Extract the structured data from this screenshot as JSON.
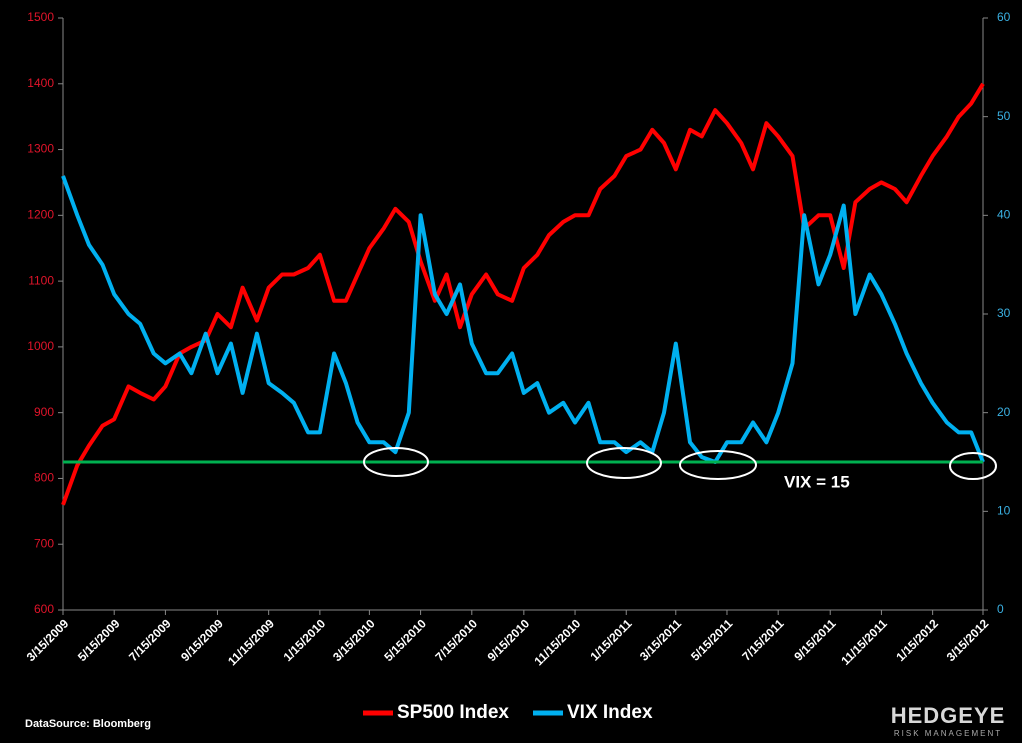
{
  "chart_data": {
    "type": "line",
    "x": [
      "3/15/2009",
      "4/1/2009",
      "4/15/2009",
      "5/1/2009",
      "5/15/2009",
      "6/1/2009",
      "6/15/2009",
      "7/1/2009",
      "7/15/2009",
      "8/1/2009",
      "8/15/2009",
      "9/1/2009",
      "9/15/2009",
      "10/1/2009",
      "10/15/2009",
      "11/1/2009",
      "11/15/2009",
      "12/1/2009",
      "12/15/2009",
      "1/1/2010",
      "1/15/2010",
      "2/1/2010",
      "2/15/2010",
      "3/1/2010",
      "3/15/2010",
      "4/1/2010",
      "4/15/2010",
      "5/1/2010",
      "5/15/2010",
      "6/1/2010",
      "6/15/2010",
      "7/1/2010",
      "7/15/2010",
      "8/1/2010",
      "8/15/2010",
      "9/1/2010",
      "9/15/2010",
      "10/1/2010",
      "10/15/2010",
      "11/1/2010",
      "11/15/2010",
      "12/1/2010",
      "12/15/2010",
      "1/1/2011",
      "1/15/2011",
      "2/1/2011",
      "2/15/2011",
      "3/1/2011",
      "3/15/2011",
      "4/1/2011",
      "4/15/2011",
      "5/1/2011",
      "5/15/2011",
      "6/1/2011",
      "6/15/2011",
      "7/1/2011",
      "7/15/2011",
      "8/1/2011",
      "8/15/2011",
      "9/1/2011",
      "9/15/2011",
      "10/1/2011",
      "10/15/2011",
      "11/1/2011",
      "11/15/2011",
      "12/1/2011",
      "12/15/2011",
      "1/1/2012",
      "1/15/2012",
      "2/1/2012",
      "2/15/2012",
      "3/1/2012",
      "3/15/2012"
    ],
    "series": [
      {
        "name": "SP500 Index",
        "color": "#ff0000",
        "values": [
          760,
          820,
          850,
          880,
          890,
          940,
          930,
          920,
          940,
          990,
          1000,
          1010,
          1050,
          1030,
          1090,
          1040,
          1090,
          1110,
          1110,
          1120,
          1140,
          1070,
          1070,
          1110,
          1150,
          1180,
          1210,
          1190,
          1130,
          1070,
          1110,
          1030,
          1080,
          1110,
          1080,
          1070,
          1120,
          1140,
          1170,
          1190,
          1200,
          1200,
          1240,
          1260,
          1290,
          1300,
          1330,
          1310,
          1270,
          1330,
          1320,
          1360,
          1340,
          1310,
          1270,
          1340,
          1320,
          1290,
          1180,
          1200,
          1200,
          1120,
          1220,
          1240,
          1250,
          1240,
          1220,
          1260,
          1290,
          1320,
          1350,
          1370,
          1400
        ]
      },
      {
        "name": "VIX Index",
        "color": "#00b0f0",
        "axis": "y2",
        "values": [
          44,
          40,
          37,
          35,
          32,
          30,
          29,
          26,
          25,
          26,
          24,
          28,
          24,
          27,
          22,
          28,
          23,
          22,
          21,
          18,
          18,
          26,
          23,
          19,
          17,
          17,
          16,
          20,
          40,
          32,
          30,
          33,
          27,
          24,
          24,
          26,
          22,
          23,
          20,
          21,
          19,
          21,
          17,
          17,
          16,
          17,
          16,
          20,
          27,
          17,
          15.5,
          15,
          17,
          17,
          19,
          17,
          20,
          25,
          40,
          33,
          36,
          41,
          30,
          34,
          32,
          29,
          26,
          23,
          21,
          19,
          18,
          18,
          15
        ]
      }
    ],
    "xlim": [
      "3/15/2009",
      "3/15/2012"
    ],
    "xticks": [
      "3/15/2009",
      "5/15/2009",
      "7/15/2009",
      "9/15/2009",
      "11/15/2009",
      "1/15/2010",
      "3/15/2010",
      "5/15/2010",
      "7/15/2010",
      "9/15/2010",
      "11/15/2010",
      "1/15/2011",
      "3/15/2011",
      "5/15/2011",
      "7/15/2011",
      "9/15/2011",
      "11/15/2011",
      "1/15/2012",
      "3/15/2012"
    ],
    "ylim": [
      600,
      1500
    ],
    "yticks": [
      600,
      700,
      800,
      900,
      1000,
      1100,
      1200,
      1300,
      1400,
      1500
    ],
    "y2lim": [
      0,
      60
    ],
    "y2ticks": [
      0,
      10,
      20,
      30,
      40,
      50,
      60
    ],
    "hline": {
      "value": 15,
      "axis": "y2",
      "label": "VIX = 15",
      "color": "#00b050"
    },
    "source": "DataSource: Bloomberg",
    "logo": {
      "name": "HEDGEYE",
      "tagline": "RISK MANAGEMENT"
    }
  }
}
